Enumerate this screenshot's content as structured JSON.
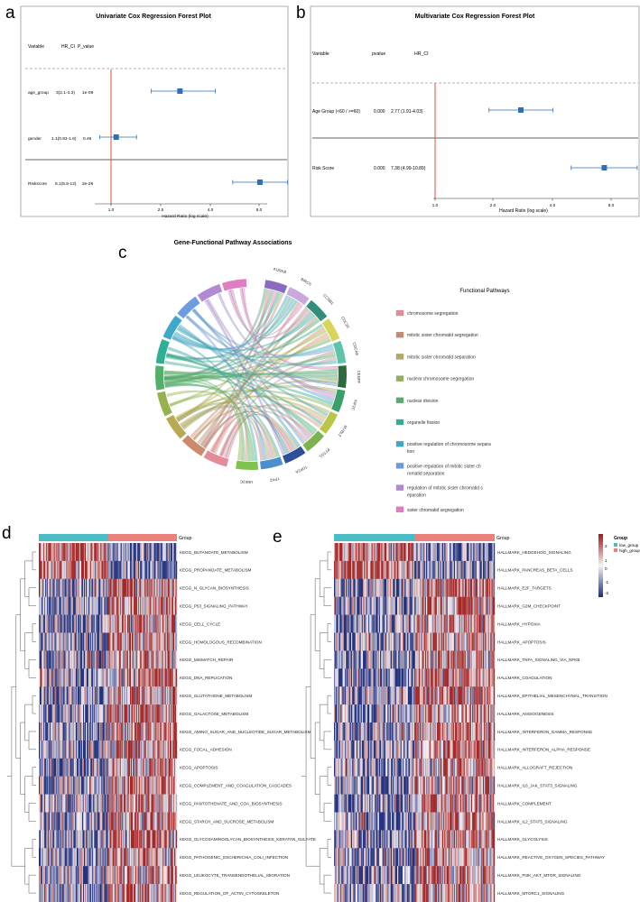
{
  "panel_letters": {
    "a": "a",
    "b": "b",
    "c": "c",
    "d": "d",
    "e": "e"
  },
  "colors": {
    "line_red": "#d9533a",
    "box_blue": "#2f6fb5",
    "low_group": "#4cbcc4",
    "high_group": "#e8817a"
  },
  "chart_data": [
    {
      "type": "forest",
      "title": "Univariate Cox Regression Forest Plot",
      "headers": [
        "Variable",
        "HR_CI",
        "P_value"
      ],
      "rows": [
        {
          "variable": "age_group",
          "hr_ci": "3(2.1-4.3)",
          "p": "1e-09",
          "hr": 3.0,
          "lo": 2.1,
          "hi": 4.3
        },
        {
          "variable": "gender",
          "hr_ci": "1.1(0.81-1.6)",
          "p": "0.46",
          "hr": 1.1,
          "lo": 0.81,
          "hi": 1.6
        },
        {
          "variable": "Riskscore",
          "hr_ci": "8.1(5.5-12)",
          "p": "2e-26",
          "hr": 8.1,
          "lo": 5.5,
          "hi": 12
        }
      ],
      "xticks": [
        "1.0",
        "2.5",
        "4.0",
        "8.0"
      ],
      "xlabel": "Hazard Ratio (log scale)"
    },
    {
      "type": "forest",
      "title": "Multivariate Cox Regression Forest Plot",
      "headers": [
        "Variable",
        "pvalue",
        "HR_CI"
      ],
      "rows": [
        {
          "variable": "Age Group (<60 / >=60)",
          "p": "0.000",
          "hr_ci": "2.77 (1.91-4.03)",
          "hr": 2.77,
          "lo": 1.91,
          "hi": 4.03
        },
        {
          "variable": "Risk Score",
          "p": "0.000",
          "hr_ci": "7.38 (4.99-10.89)",
          "hr": 7.38,
          "lo": 4.99,
          "hi": 10.89
        }
      ],
      "xticks": [
        "1.0",
        "2.0",
        "4.0",
        "8.0"
      ],
      "xlabel": "Hazard Ratio (log scale)"
    },
    {
      "type": "chord",
      "title": "Gene-Functional Pathway Associations",
      "genes": [
        "AURKB",
        "BIRC5",
        "CCNB1",
        "CDC20",
        "CDCA8",
        "CENPF",
        "KIF2C",
        "MYBL2",
        "PTTG1",
        "TOP2A",
        "TPX2",
        "UBE2C"
      ],
      "legend_title": "Functional Pathways",
      "pathways": [
        {
          "label": "chromosome segregation",
          "color": "#e58a98"
        },
        {
          "label": "mitotic sister chromatid segregation",
          "color": "#cc8a6c"
        },
        {
          "label": "mitotic sister chromatid separation",
          "color": "#b8aa55"
        },
        {
          "label": "nuclear chromosome segregation",
          "color": "#95b24e"
        },
        {
          "label": "nuclear division",
          "color": "#54ae6c"
        },
        {
          "label": "organelle fission",
          "color": "#2eaf98"
        },
        {
          "label": "positive regulation of chromosome separa tion",
          "color": "#3ea8c8"
        },
        {
          "label": "positive regulation of mitotic sister ch romatid separation",
          "color": "#6b9be0"
        },
        {
          "label": "regulation of mitotic sister chromatid s eparation",
          "color": "#b28ad4"
        },
        {
          "label": "sister chromatid segregation",
          "color": "#e07ec2"
        }
      ]
    },
    {
      "type": "heatmap",
      "group_label": "Group",
      "rows": [
        "KEGG_BUTANOATE_METABOLISM",
        "KEGG_PROPANOATE_METABOLISM",
        "KEGG_N_GLYCAN_BIOSYNTHESIS",
        "KEGG_P53_SIGNALING_PATHWAY",
        "KEGG_CELL_CYCLE",
        "KEGG_HOMOLOGOUS_RECOMBINATION",
        "KEGG_MISMATCH_REPAIR",
        "KEGG_DNA_REPLICATION",
        "KEGG_GLUTATHIONE_METABOLISM",
        "KEGG_GALACTOSE_METABOLISM",
        "KEGG_AMINO_SUGAR_AND_NUCLEOTIDE_SUGAR_METABOLISM",
        "KEGG_FOCAL_ADHESION",
        "KEGG_APOPTOSIS",
        "KEGG_COMPLEMENT_AND_COAGULATION_CASCADES",
        "KEGG_PANTOTHENATE_AND_COA_BIOSYNTHESIS",
        "KEGG_STARCH_AND_SUCROSE_METABOLISM",
        "KEGG_GLYCOSAMINOGLYCAN_BIOSYNTHESIS_KERATAN_SULFATE",
        "KEGG_PATHOGENIC_ESCHERICHIA_COLI_INFECTION",
        "KEGG_LEUKOCYTE_TRANSENDOTHELIAL_MIGRATION",
        "KEGG_REGULATION_OF_ACTIN_CYTOSKELETON"
      ]
    },
    {
      "type": "heatmap",
      "group_label": "Group",
      "rows": [
        "HALLMARK_HEDGEHOG_SIGNALING",
        "HALLMARK_PANCREAS_BETA_CELLS",
        "HALLMARK_E2F_TARGETS",
        "HALLMARK_G2M_CHECKPOINT",
        "HALLMARK_HYPOXIA",
        "HALLMARK_APOPTOSIS",
        "HALLMARK_TNFA_SIGNALING_VIA_NFKB",
        "HALLMARK_COAGULATION",
        "HALLMARK_EPITHELIAL_MESENCHYMAL_TRANSITION",
        "HALLMARK_ANGIOGENESIS",
        "HALLMARK_INTERFERON_GAMMA_RESPONSE",
        "HALLMARK_INTERFERON_ALPHA_RESPONSE",
        "HALLMARK_ALLOGRAFT_REJECTION",
        "HALLMARK_IL6_JAK_STAT3_SIGNALING",
        "HALLMARK_COMPLEMENT",
        "HALLMARK_IL2_STAT5_SIGNALING",
        "HALLMARK_GLYCOLYSIS",
        "HALLMARK_REACTIVE_OXYGEN_SPECIES_PATHWAY",
        "HALLMARK_PI3K_AKT_MTOR_SIGNALING",
        "HALLMARK_MTORC1_SIGNALING"
      ],
      "legend": {
        "title": "Group",
        "low": "low_group",
        "high": "high_group",
        "scale": [
          "2",
          "1",
          "0",
          "-1",
          "-2"
        ]
      }
    }
  ]
}
